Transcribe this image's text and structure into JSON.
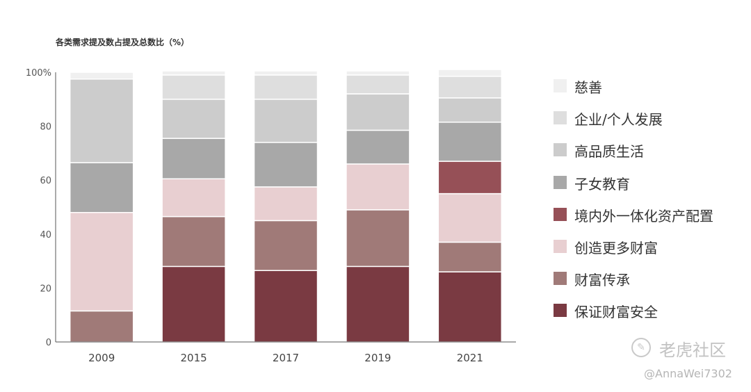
{
  "chart_data": {
    "type": "bar",
    "stacked": true,
    "title": "各类需求提及数占提及总数比（%）",
    "categories": [
      "2009",
      "2015",
      "2017",
      "2019",
      "2021"
    ],
    "ylim": [
      0,
      100
    ],
    "yticks": [
      "0",
      "20",
      "40",
      "60",
      "80",
      "100%"
    ],
    "grid": false,
    "legend_position": "right",
    "series": [
      {
        "name": "保证财富安全",
        "color": "#7a3a42",
        "values": [
          0,
          28,
          26.5,
          28,
          26
        ]
      },
      {
        "name": "财富传承",
        "color": "#a07a78",
        "values": [
          11.5,
          18.5,
          18.5,
          21,
          11
        ]
      },
      {
        "name": "创造更多财富",
        "color": "#e8cfd1",
        "values": [
          36.5,
          14,
          12.5,
          17,
          18
        ]
      },
      {
        "name": "境内外一体化资产配置",
        "color": "#965057",
        "values": [
          0,
          0,
          0,
          0,
          12
        ]
      },
      {
        "name": "子女教育",
        "color": "#a8a8a8",
        "values": [
          18.5,
          15,
          16.5,
          12.5,
          14.5
        ]
      },
      {
        "name": "高品质生活",
        "color": "#cccccc",
        "values": [
          31,
          14.5,
          16,
          13.5,
          9
        ]
      },
      {
        "name": "企业/个人发展",
        "color": "#dedede",
        "values": [
          0,
          9,
          9,
          7,
          8
        ]
      },
      {
        "name": "慈善",
        "color": "#f0f0f0",
        "values": [
          2.5,
          1.5,
          1.5,
          1.5,
          2.5
        ]
      }
    ]
  },
  "watermark": {
    "brand": "老虎社区",
    "user": "@AnnaWei7302",
    "logo_glyph": "✎"
  }
}
